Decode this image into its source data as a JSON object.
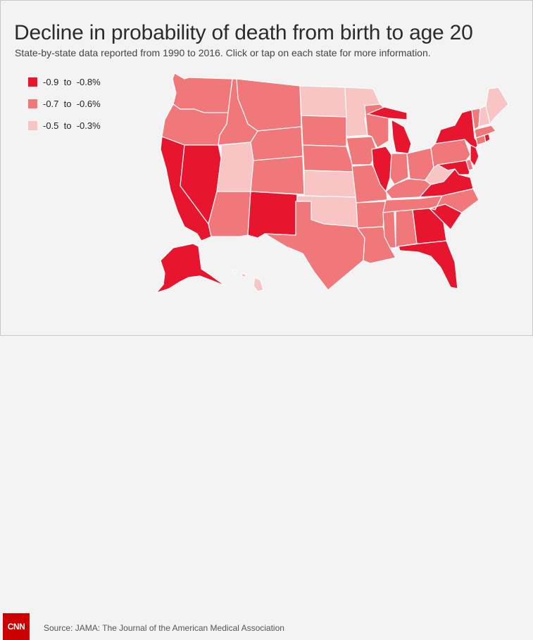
{
  "title": "Decline in probability of death from birth to age 20",
  "subtitle": "State-by-state data reported from 1990 to 2016. Click or tap on each state for more information.",
  "legend": [
    {
      "label": "-0.9  to  -0.8%",
      "color": "#e8152e"
    },
    {
      "label": "-0.7  to  -0.6%",
      "color": "#f0787a"
    },
    {
      "label": "-0.5  to  -0.3%",
      "color": "#f9c4c4"
    }
  ],
  "source": "Source: JAMA: The Journal of the American Medical Association",
  "logo": "CNN",
  "colors": {
    "high": "#e8152e",
    "mid": "#f0787a",
    "low": "#f9c4c4"
  },
  "states": [
    {
      "code": "WA",
      "name": "Washington",
      "category": "mid"
    },
    {
      "code": "OR",
      "name": "Oregon",
      "category": "mid"
    },
    {
      "code": "CA",
      "name": "California",
      "category": "high"
    },
    {
      "code": "NV",
      "name": "Nevada",
      "category": "high"
    },
    {
      "code": "ID",
      "name": "Idaho",
      "category": "mid"
    },
    {
      "code": "MT",
      "name": "Montana",
      "category": "mid"
    },
    {
      "code": "WY",
      "name": "Wyoming",
      "category": "mid"
    },
    {
      "code": "UT",
      "name": "Utah",
      "category": "low"
    },
    {
      "code": "AZ",
      "name": "Arizona",
      "category": "mid"
    },
    {
      "code": "CO",
      "name": "Colorado",
      "category": "mid"
    },
    {
      "code": "NM",
      "name": "New Mexico",
      "category": "high"
    },
    {
      "code": "ND",
      "name": "North Dakota",
      "category": "low"
    },
    {
      "code": "SD",
      "name": "South Dakota",
      "category": "mid"
    },
    {
      "code": "NE",
      "name": "Nebraska",
      "category": "mid"
    },
    {
      "code": "KS",
      "name": "Kansas",
      "category": "low"
    },
    {
      "code": "OK",
      "name": "Oklahoma",
      "category": "low"
    },
    {
      "code": "TX",
      "name": "Texas",
      "category": "mid"
    },
    {
      "code": "MN",
      "name": "Minnesota",
      "category": "low"
    },
    {
      "code": "IA",
      "name": "Iowa",
      "category": "mid"
    },
    {
      "code": "MO",
      "name": "Missouri",
      "category": "mid"
    },
    {
      "code": "AR",
      "name": "Arkansas",
      "category": "mid"
    },
    {
      "code": "LA",
      "name": "Louisiana",
      "category": "mid"
    },
    {
      "code": "WI",
      "name": "Wisconsin",
      "category": "mid"
    },
    {
      "code": "IL",
      "name": "Illinois",
      "category": "high"
    },
    {
      "code": "MI",
      "name": "Michigan",
      "category": "high"
    },
    {
      "code": "IN",
      "name": "Indiana",
      "category": "mid"
    },
    {
      "code": "OH",
      "name": "Ohio",
      "category": "mid"
    },
    {
      "code": "KY",
      "name": "Kentucky",
      "category": "mid"
    },
    {
      "code": "TN",
      "name": "Tennessee",
      "category": "mid"
    },
    {
      "code": "MS",
      "name": "Mississippi",
      "category": "mid"
    },
    {
      "code": "AL",
      "name": "Alabama",
      "category": "mid"
    },
    {
      "code": "GA",
      "name": "Georgia",
      "category": "high"
    },
    {
      "code": "FL",
      "name": "Florida",
      "category": "high"
    },
    {
      "code": "SC",
      "name": "South Carolina",
      "category": "high"
    },
    {
      "code": "NC",
      "name": "North Carolina",
      "category": "mid"
    },
    {
      "code": "VA",
      "name": "Virginia",
      "category": "high"
    },
    {
      "code": "WV",
      "name": "West Virginia",
      "category": "low"
    },
    {
      "code": "PA",
      "name": "Pennsylvania",
      "category": "mid"
    },
    {
      "code": "NY",
      "name": "New York",
      "category": "high"
    },
    {
      "code": "MD",
      "name": "Maryland",
      "category": "high"
    },
    {
      "code": "DE",
      "name": "Delaware",
      "category": "mid"
    },
    {
      "code": "NJ",
      "name": "New Jersey",
      "category": "high"
    },
    {
      "code": "CT",
      "name": "Connecticut",
      "category": "mid"
    },
    {
      "code": "RI",
      "name": "Rhode Island",
      "category": "high"
    },
    {
      "code": "MA",
      "name": "Massachusetts",
      "category": "mid"
    },
    {
      "code": "VT",
      "name": "Vermont",
      "category": "mid"
    },
    {
      "code": "NH",
      "name": "New Hampshire",
      "category": "low"
    },
    {
      "code": "ME",
      "name": "Maine",
      "category": "low"
    },
    {
      "code": "AK",
      "name": "Alaska",
      "category": "high"
    },
    {
      "code": "HI",
      "name": "Hawaii",
      "category": "low"
    }
  ]
}
